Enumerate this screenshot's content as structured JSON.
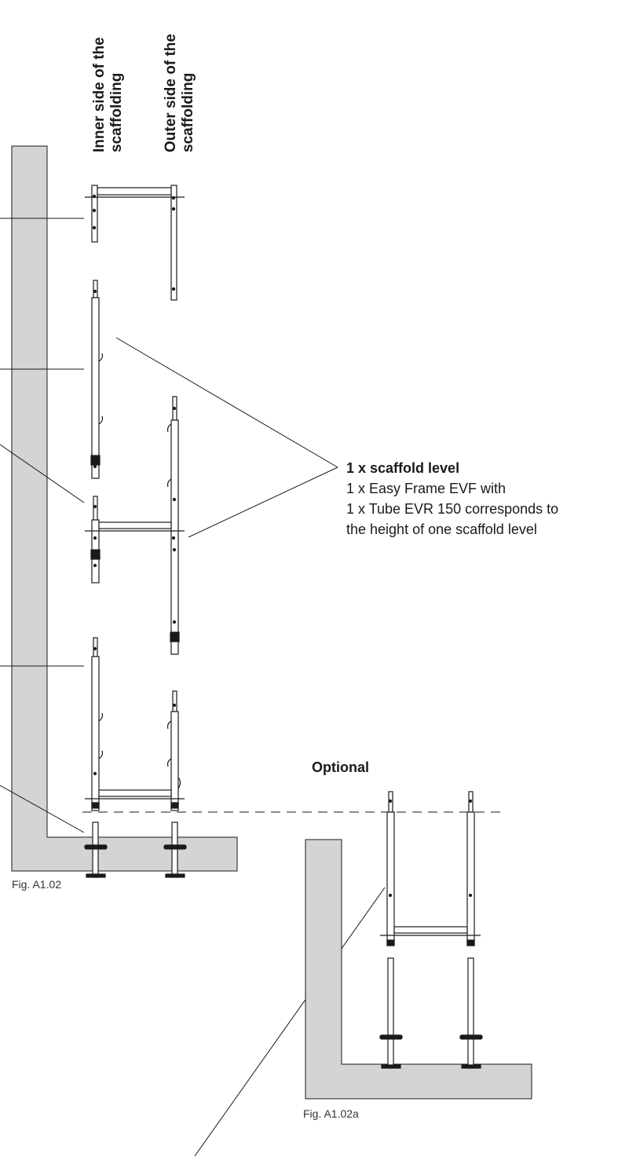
{
  "labels": {
    "inner_side": [
      "Inner side of the",
      "scaffolding"
    ],
    "outer_side": [
      "Outer side of the",
      "scaffolding"
    ]
  },
  "note": {
    "heading": "1 x scaffold level",
    "lines": [
      "1 x Easy Frame EVF with",
      "1 x Tube EVR 150 corresponds to",
      "the height of one scaffold level"
    ]
  },
  "optional_label": "Optional",
  "captions": {
    "main": "Fig. A1.02",
    "optional": "Fig. A1.02a"
  },
  "colors": {
    "wall_fill": "#d4d4d4",
    "line": "#1a1a1a"
  }
}
